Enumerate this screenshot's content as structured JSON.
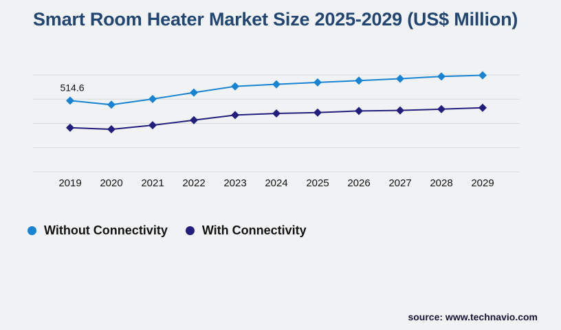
{
  "title": "Smart Room Heater Market Size 2025-2029 (US$ Million)",
  "source": "source: www.technavio.com",
  "colors": {
    "background": "#f1f2f4",
    "title": "#224672",
    "gridline": "#d6d9dc",
    "text": "#111111",
    "source_text": "#131335",
    "without_connectivity": "#1783d2",
    "with_connectivity": "#221e7e"
  },
  "legend": [
    {
      "label": "Without Connectivity",
      "color": "#1783d2"
    },
    {
      "label": "With Connectivity",
      "color": "#221e7e"
    }
  ],
  "chart_data": {
    "type": "line",
    "title": "Smart Room Heater Market Size 2025-2029 (US$ Million)",
    "xlabel": "",
    "ylabel": "",
    "categories": [
      "2019",
      "2020",
      "2021",
      "2022",
      "2023",
      "2024",
      "2025",
      "2026",
      "2027",
      "2028",
      "2029"
    ],
    "series": [
      {
        "name": "Without Connectivity",
        "color": "#1783d2",
        "values": [
          514.6,
          485.0,
          526.0,
          573.0,
          617.5,
          632.5,
          646.0,
          659.0,
          672.5,
          689.0,
          697.5
        ]
      },
      {
        "name": "With Connectivity",
        "color": "#221e7e",
        "values": [
          319.0,
          307.5,
          337.0,
          373.5,
          410.0,
          422.0,
          428.5,
          440.0,
          443.5,
          453.0,
          463.0
        ]
      }
    ],
    "data_labels": [
      {
        "series": "Without Connectivity",
        "category": "2019",
        "text": "514.6"
      }
    ],
    "ylim": [
      0,
      700
    ],
    "gridlines": 5,
    "grid": "horizontal-only",
    "y_axis_labels_visible": false,
    "marker": "diamond",
    "legend_position": "bottom-left"
  }
}
